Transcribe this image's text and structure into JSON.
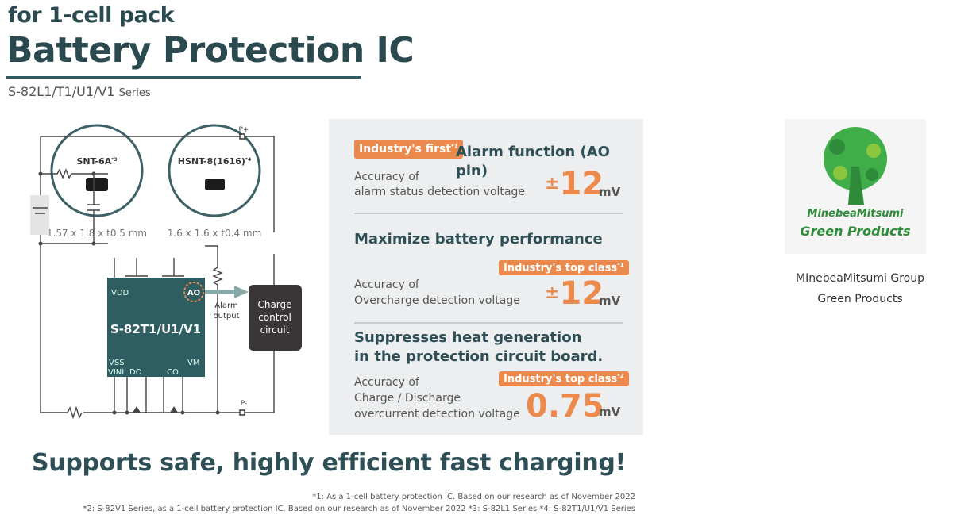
{
  "header": {
    "subtitle": "for 1-cell pack",
    "title": "Battery Protection IC",
    "series_code": "S-82L1/T1/U1/V1",
    "series_word": "Series"
  },
  "packages": [
    {
      "name": "SNT-6A",
      "note": "*3",
      "dims": "1.57 x 1.8 x t0.5 mm"
    },
    {
      "name": "HSNT-8(1616)",
      "note": "*4",
      "dims": "1.6 x 1.6 x t0.4 mm"
    }
  ],
  "circuit": {
    "ic_name": "S-82T1/U1/V1",
    "pin_vdd": "VDD",
    "pin_ao": "AO",
    "pin_vss": "VSS",
    "pin_vini": "VINI",
    "pin_do": "DO",
    "pin_co": "CO",
    "pin_vm": "VM",
    "p_plus": "P+",
    "p_minus": "P-",
    "alarm_line1": "Alarm",
    "alarm_line2": "output",
    "ccc_line1": "Charge",
    "ccc_line2": "control",
    "ccc_line3": "circuit"
  },
  "features": [
    {
      "badge": "Industry's first",
      "badge_note": "*1",
      "heading": "Alarm function (AO pin)",
      "desc1": "Accuracy of",
      "desc2": "alarm status detection voltage",
      "pm": "±",
      "value": "12",
      "unit": "mV"
    },
    {
      "heading": "Maximize battery performance",
      "badge": "Industry's top class",
      "badge_note": "*1",
      "desc1": "Accuracy of",
      "desc2": "Overcharge detection voltage",
      "pm": "±",
      "value": "12",
      "unit": "mV"
    },
    {
      "heading1": "Suppresses heat generation",
      "heading2": "in the protection circuit board.",
      "badge": "Industry's top class",
      "badge_note": "*2",
      "desc1": "Accuracy of",
      "desc2": "Charge / Discharge",
      "desc3": "overcurrent detection voltage",
      "value": "0.75",
      "unit": "mV"
    }
  ],
  "logo": {
    "line1": "MinebeaMitsumi",
    "line2": "Green Products",
    "caption1": "MInebeaMitsumi Group",
    "caption2": "Green Products"
  },
  "headline": "Supports safe, highly efficient fast charging!",
  "footnotes": [
    "*1: As a 1-cell  battery protection IC. Based on our research as of November 2022",
    "*2: S-82V1 Series, as a 1-cell  battery protection IC. Based on our research as of November 2022  *3: S-82L1 Series  *4: S-82T1/U1/V1 Series"
  ],
  "colors": {
    "teal": "#2d4f55",
    "orange": "#ec8a4e",
    "ic": "#2e5d62",
    "panel": "#eceeef",
    "green": "#2e8b3a"
  }
}
